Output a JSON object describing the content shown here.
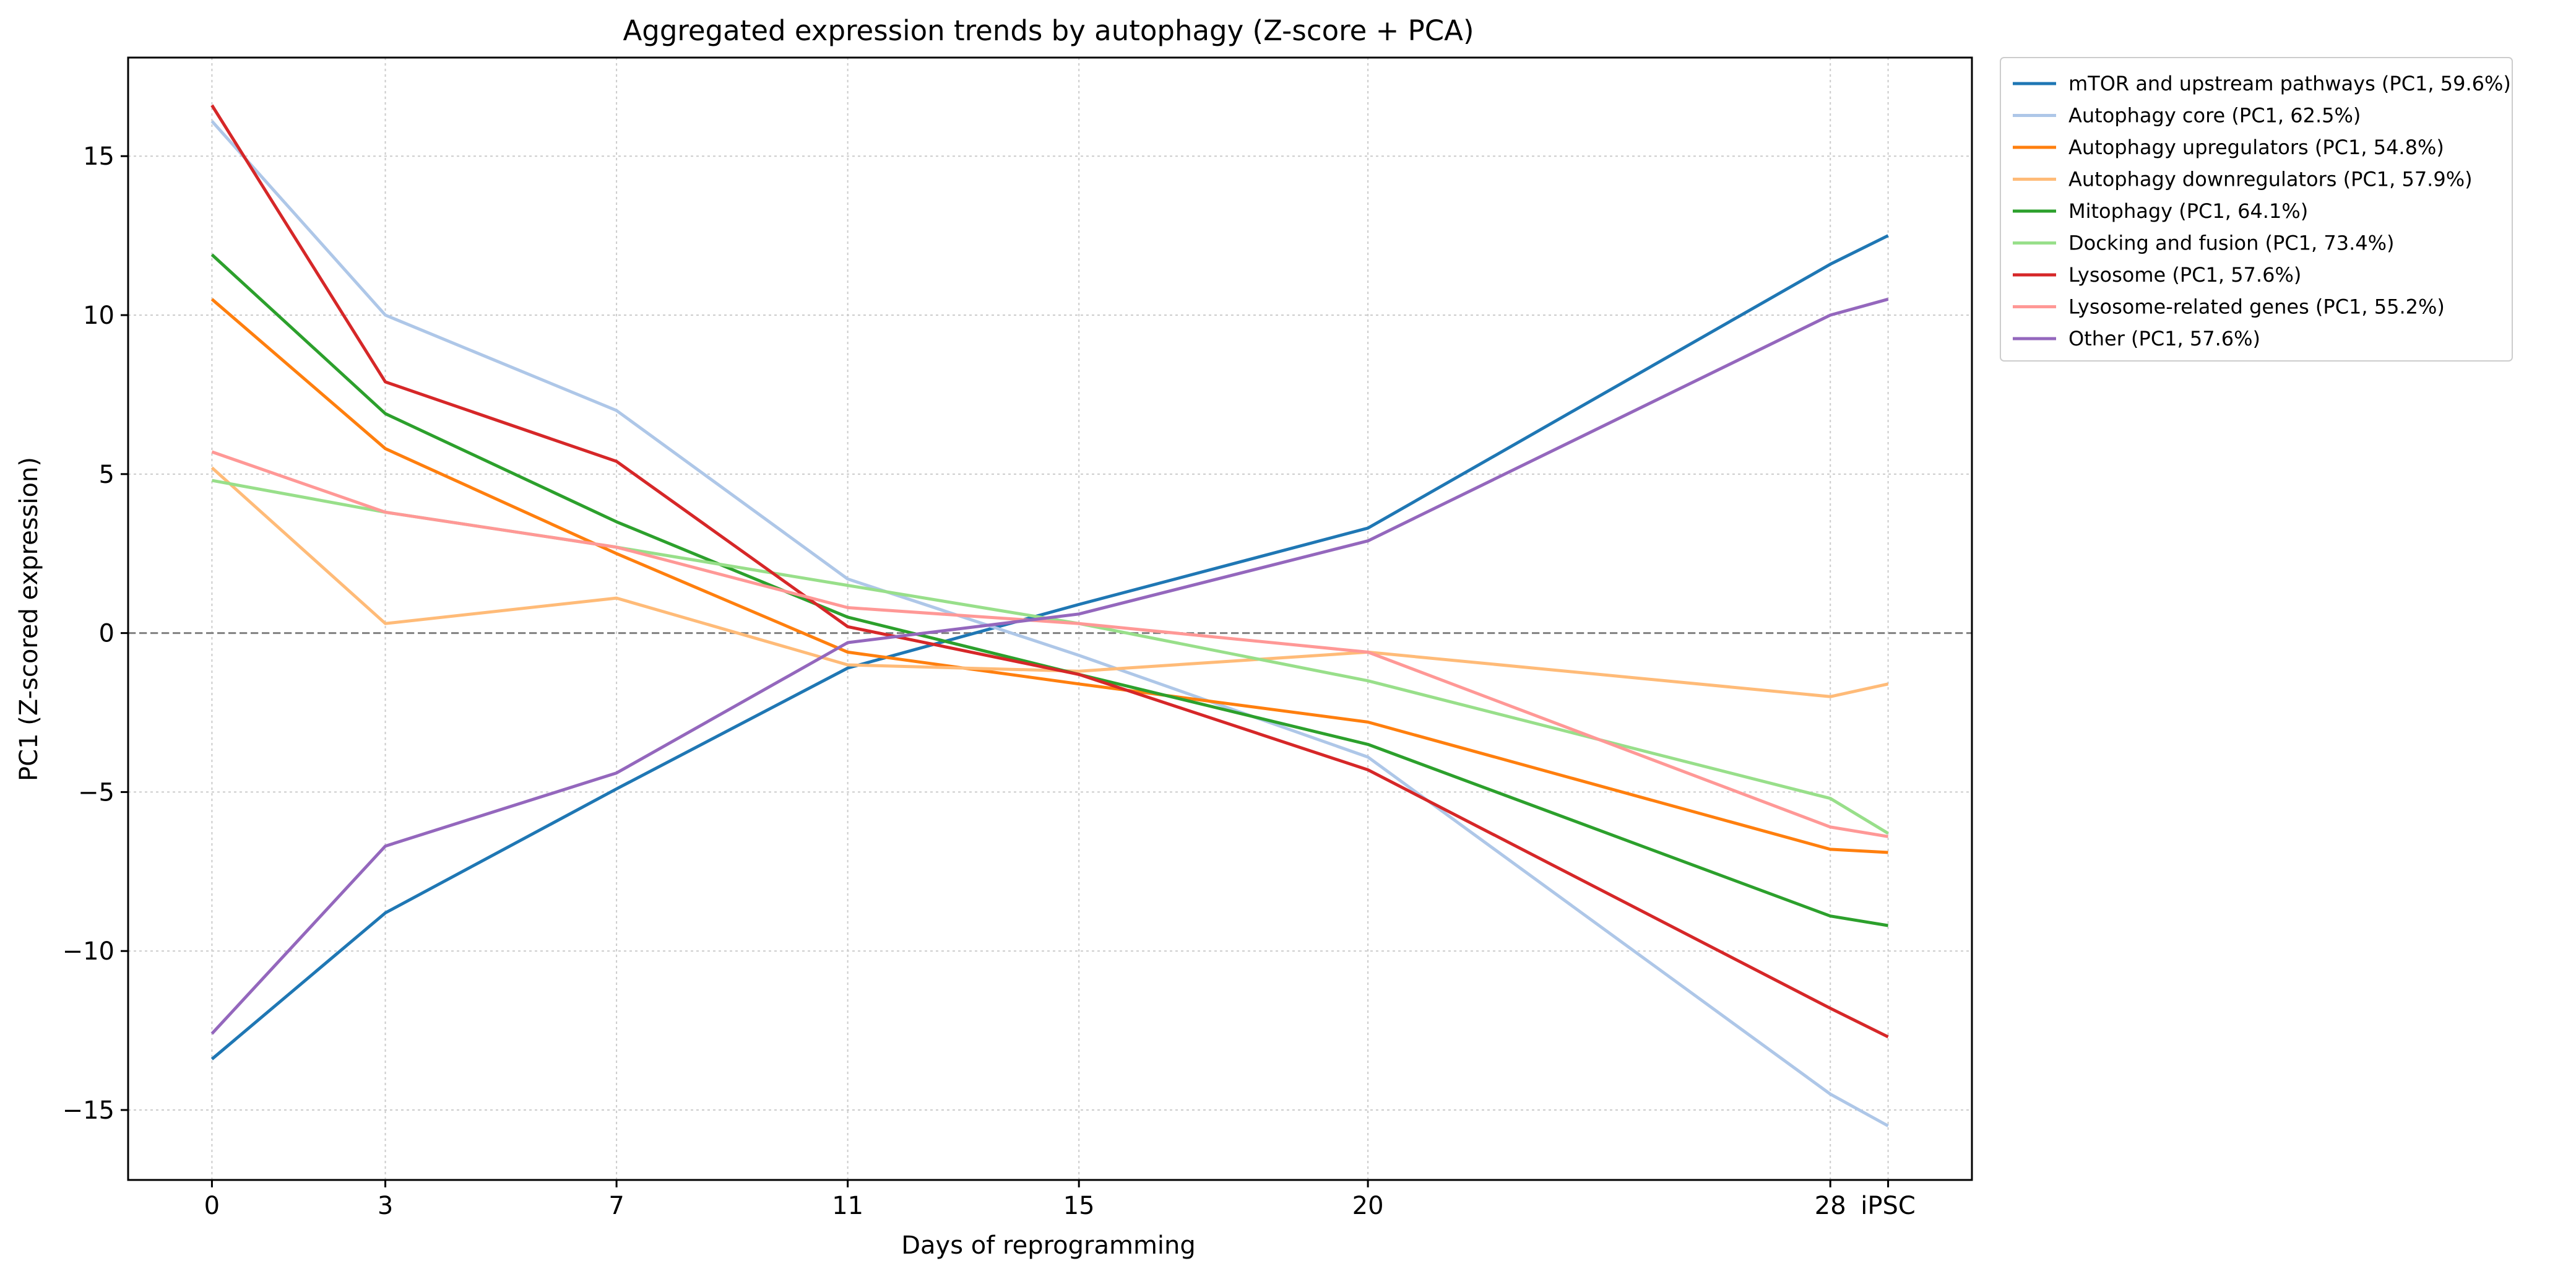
{
  "chart_data": {
    "type": "line",
    "title": "Aggregated expression trends by autophagy (Z-score + PCA)",
    "xlabel": "Days of reprogramming",
    "ylabel": "PC1 (Z-scored expression)",
    "x": [
      0,
      3,
      7,
      11,
      15,
      20,
      28,
      29
    ],
    "x_tick_labels": [
      "0",
      "3",
      "7",
      "11",
      "15",
      "20",
      "28",
      "iPSC"
    ],
    "xlim": [
      -1.45,
      30.45
    ],
    "ylim": [
      -17.2,
      18.1
    ],
    "y_ticks": [
      -15,
      -10,
      -5,
      0,
      5,
      10,
      15
    ],
    "y_tick_labels": [
      "−15",
      "−10",
      "−5",
      "0",
      "5",
      "10",
      "15"
    ],
    "reference_line": 0,
    "grid": true,
    "legend_position": "outside-top-right",
    "series": [
      {
        "name": "mTOR and upstream pathways (PC1, 59.6%)",
        "color": "#1f77b4",
        "values": [
          -13.4,
          -8.8,
          -4.9,
          -1.1,
          0.9,
          3.3,
          11.6,
          12.5
        ]
      },
      {
        "name": "Autophagy core (PC1, 62.5%)",
        "color": "#aec7e8",
        "values": [
          16.1,
          10.0,
          7.0,
          1.7,
          -0.7,
          -3.9,
          -14.5,
          -15.5
        ]
      },
      {
        "name": "Autophagy upregulators (PC1, 54.8%)",
        "color": "#ff7f0e",
        "values": [
          10.5,
          5.8,
          2.5,
          -0.6,
          -1.6,
          -2.8,
          -6.8,
          -6.9
        ]
      },
      {
        "name": "Autophagy downregulators (PC1, 57.9%)",
        "color": "#ffbb78",
        "values": [
          5.2,
          0.3,
          1.1,
          -1.0,
          -1.2,
          -0.6,
          -2.0,
          -1.6
        ]
      },
      {
        "name": "Mitophagy (PC1, 64.1%)",
        "color": "#2ca02c",
        "values": [
          11.9,
          6.9,
          3.5,
          0.5,
          -1.3,
          -3.5,
          -8.9,
          -9.2
        ]
      },
      {
        "name": "Docking and fusion (PC1, 73.4%)",
        "color": "#98df8a",
        "values": [
          4.8,
          3.8,
          2.7,
          1.5,
          0.3,
          -1.5,
          -5.2,
          -6.3
        ]
      },
      {
        "name": "Lysosome (PC1, 57.6%)",
        "color": "#d62728",
        "values": [
          16.6,
          7.9,
          5.4,
          0.2,
          -1.3,
          -4.3,
          -11.8,
          -12.7
        ]
      },
      {
        "name": "Lysosome-related genes (PC1, 55.2%)",
        "color": "#ff9896",
        "values": [
          5.7,
          3.8,
          2.7,
          0.8,
          0.3,
          -0.6,
          -6.1,
          -6.4
        ]
      },
      {
        "name": "Other (PC1, 57.6%)",
        "color": "#9467bd",
        "values": [
          -12.6,
          -6.7,
          -4.4,
          -0.3,
          0.6,
          2.9,
          10.0,
          10.5
        ]
      }
    ]
  }
}
